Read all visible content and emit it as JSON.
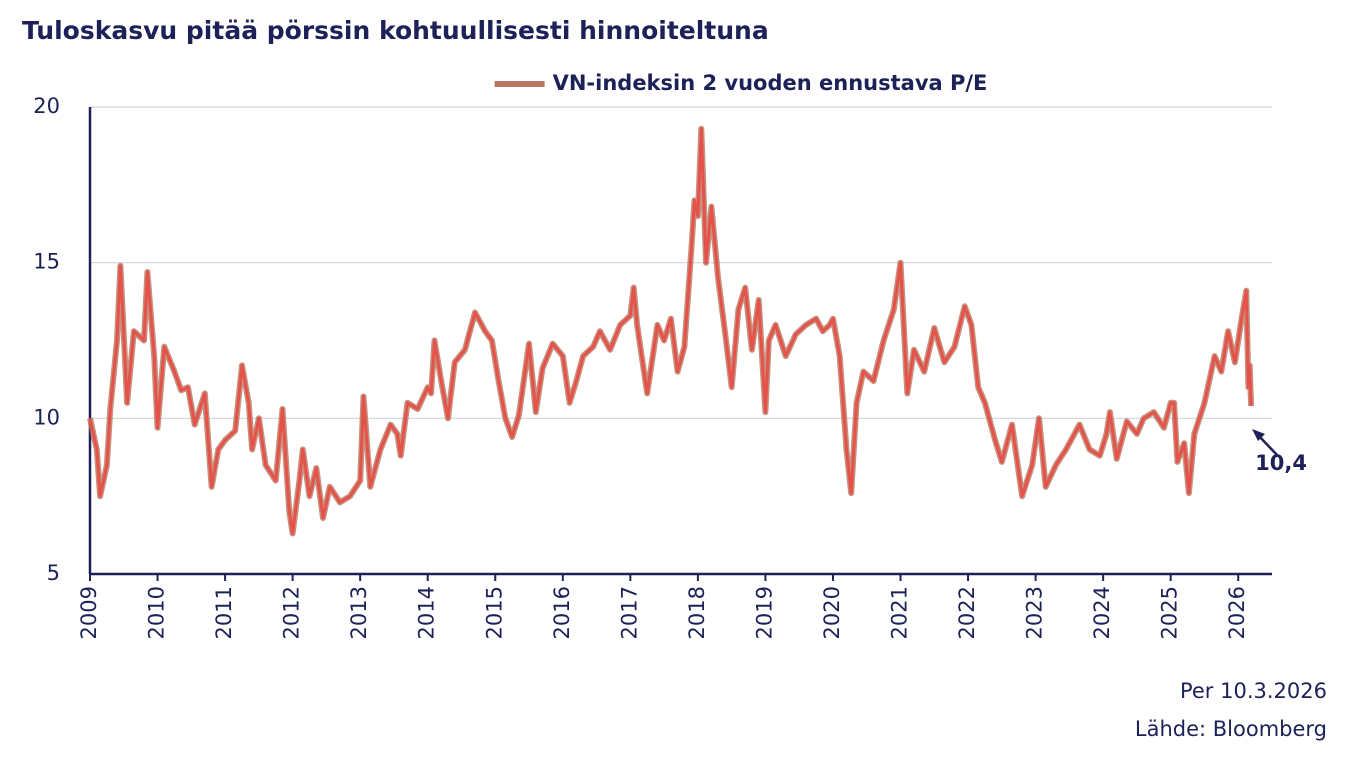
{
  "chart_data": {
    "type": "line",
    "title": "Tuloskasvu pitää pörssin kohtuullisesti hinnoiteltuna",
    "date_note": "Per 10.3.2026",
    "source": "Lähde: Bloomberg",
    "annotation": {
      "text": "10,4",
      "x": 2026.19,
      "y": 10.4
    },
    "xlim": [
      2009,
      2026.5
    ],
    "ylim": [
      5,
      20
    ],
    "xticks": [
      2009,
      2010,
      2011,
      2012,
      2013,
      2014,
      2015,
      2016,
      2017,
      2018,
      2019,
      2020,
      2021,
      2022,
      2023,
      2024,
      2025,
      2026
    ],
    "yticks": [
      5,
      10,
      15,
      20
    ],
    "grid": true,
    "legend": "top",
    "x": [
      2009.0,
      2009.1,
      2009.15,
      2009.25,
      2009.3,
      2009.4,
      2009.45,
      2009.55,
      2009.65,
      2009.8,
      2009.85,
      2009.95,
      2010.0,
      2010.1,
      2010.25,
      2010.35,
      2010.45,
      2010.55,
      2010.7,
      2010.8,
      2010.9,
      2011.0,
      2011.15,
      2011.25,
      2011.35,
      2011.4,
      2011.5,
      2011.6,
      2011.75,
      2011.85,
      2011.95,
      2012.0,
      2012.1,
      2012.15,
      2012.25,
      2012.35,
      2012.45,
      2012.55,
      2012.7,
      2012.85,
      2013.0,
      2013.05,
      2013.15,
      2013.3,
      2013.45,
      2013.55,
      2013.6,
      2013.7,
      2013.85,
      2014.0,
      2014.05,
      2014.1,
      2014.2,
      2014.3,
      2014.4,
      2014.55,
      2014.7,
      2014.85,
      2014.95,
      2015.05,
      2015.15,
      2015.25,
      2015.35,
      2015.5,
      2015.6,
      2015.7,
      2015.85,
      2016.0,
      2016.1,
      2016.2,
      2016.3,
      2016.45,
      2016.55,
      2016.7,
      2016.85,
      2017.0,
      2017.05,
      2017.1,
      2017.25,
      2017.4,
      2017.5,
      2017.6,
      2017.7,
      2017.8,
      2017.9,
      2017.95,
      2018.0,
      2018.05,
      2018.12,
      2018.2,
      2018.3,
      2018.4,
      2018.5,
      2018.6,
      2018.7,
      2018.8,
      2018.9,
      2019.0,
      2019.05,
      2019.15,
      2019.3,
      2019.45,
      2019.6,
      2019.75,
      2019.85,
      2019.95,
      2020.0,
      2020.1,
      2020.2,
      2020.27,
      2020.35,
      2020.45,
      2020.6,
      2020.75,
      2020.9,
      2021.0,
      2021.1,
      2021.2,
      2021.35,
      2021.5,
      2021.65,
      2021.8,
      2021.95,
      2022.05,
      2022.15,
      2022.25,
      2022.4,
      2022.5,
      2022.65,
      2022.8,
      2022.95,
      2023.05,
      2023.15,
      2023.3,
      2023.45,
      2023.65,
      2023.8,
      2023.95,
      2024.05,
      2024.1,
      2024.2,
      2024.35,
      2024.5,
      2024.6,
      2024.75,
      2024.9,
      2025.0,
      2025.05,
      2025.1,
      2025.2,
      2025.27,
      2025.35,
      2025.5,
      2025.65,
      2025.75,
      2025.85,
      2025.95,
      2026.05,
      2026.12,
      2026.15,
      2026.17,
      2026.19
    ],
    "series": [
      {
        "name": "VN-indeksin 2 vuoden ennustava P/E",
        "color": "#e5524a",
        "values": [
          10.0,
          9.0,
          7.5,
          8.5,
          10.3,
          12.5,
          14.9,
          10.5,
          12.8,
          12.5,
          14.7,
          12.0,
          9.7,
          12.3,
          11.5,
          10.9,
          11.0,
          9.8,
          10.8,
          7.8,
          9.0,
          9.3,
          9.6,
          11.7,
          10.5,
          9.0,
          10.0,
          8.5,
          8.0,
          10.3,
          7.0,
          6.3,
          8.0,
          9.0,
          7.5,
          8.4,
          6.8,
          7.8,
          7.3,
          7.5,
          8.0,
          10.7,
          7.8,
          9.0,
          9.8,
          9.5,
          8.8,
          10.5,
          10.3,
          11.0,
          10.8,
          12.5,
          11.2,
          10.0,
          11.8,
          12.2,
          13.4,
          12.8,
          12.5,
          11.2,
          10.0,
          9.4,
          10.1,
          12.4,
          10.2,
          11.6,
          12.4,
          12.0,
          10.5,
          11.2,
          12.0,
          12.3,
          12.8,
          12.2,
          13.0,
          13.3,
          14.2,
          13.0,
          10.8,
          13.0,
          12.5,
          13.2,
          11.5,
          12.3,
          15.3,
          17.0,
          16.5,
          19.3,
          15.0,
          16.8,
          14.5,
          12.8,
          11.0,
          13.5,
          14.2,
          12.2,
          13.8,
          10.2,
          12.5,
          13.0,
          12.0,
          12.7,
          13.0,
          13.2,
          12.8,
          13.0,
          13.2,
          12.0,
          9.0,
          7.6,
          10.5,
          11.5,
          11.2,
          12.5,
          13.5,
          15.0,
          10.8,
          12.2,
          11.5,
          12.9,
          11.8,
          12.3,
          13.6,
          13.0,
          11.0,
          10.5,
          9.3,
          8.6,
          9.8,
          7.5,
          8.5,
          10.0,
          7.8,
          8.5,
          9.0,
          9.8,
          9.0,
          8.8,
          9.5,
          10.2,
          8.7,
          9.9,
          9.5,
          10.0,
          10.2,
          9.7,
          10.5,
          10.5,
          8.6,
          9.2,
          7.6,
          9.5,
          10.5,
          12.0,
          11.5,
          12.8,
          11.8,
          13.2,
          14.1,
          11.0,
          11.7,
          10.4
        ]
      }
    ]
  }
}
